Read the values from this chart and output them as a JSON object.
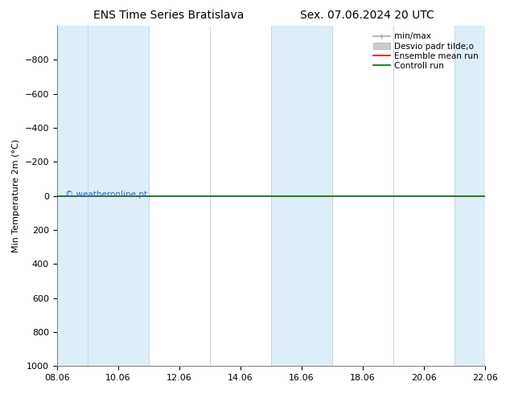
{
  "title_left": "ENS Time Series Bratislava",
  "title_right": "Sex. 07.06.2024 20 UTC",
  "ylabel": "Min Temperature 2m (°C)",
  "xticks": [
    "08.06",
    "10.06",
    "12.06",
    "14.06",
    "16.06",
    "18.06",
    "20.06",
    "22.06"
  ],
  "ylim": [
    -1000,
    1000
  ],
  "yticks": [
    -800,
    -600,
    -400,
    -200,
    0,
    200,
    400,
    600,
    800,
    1000
  ],
  "background_color": "#ffffff",
  "plot_bg_color": "#ffffff",
  "shaded_col_color": "#ddeef8",
  "shaded_indices": [
    0,
    1,
    4,
    7
  ],
  "hline_y": 0,
  "hline_color": "#006600",
  "hline_linewidth": 1.2,
  "ensemble_mean_color": "#ff0000",
  "control_run_color": "#006600",
  "minmax_color": "#aaaaaa",
  "desvio_color": "#cccccc",
  "watermark_text": "© weatheronline.pt",
  "watermark_color": "#3366cc",
  "legend_labels": [
    "min/max",
    "Desvio padr tilde;o",
    "Ensemble mean run",
    "Controll run"
  ],
  "title_fontsize": 10,
  "axis_fontsize": 8,
  "tick_fontsize": 8,
  "legend_fontsize": 7.5
}
